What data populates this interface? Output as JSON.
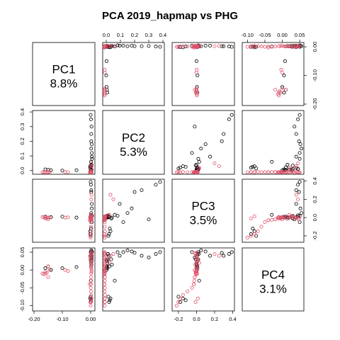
{
  "chart_data": {
    "type": "scatter",
    "title": "PCA 2019_hapmap vs PHG",
    "layout": "pairs",
    "grid": false,
    "legend": "none",
    "colors": {
      "group_a": "#000000",
      "group_b": "#df536b",
      "frame": "#000000"
    },
    "variables": [
      {
        "name": "PC1",
        "percent": "8.8%",
        "range": [
          -0.205,
          0.015
        ],
        "ticks": [
          -0.2,
          -0.1,
          0.0
        ],
        "tick_labels": [
          "-0.20",
          "-0.10",
          "0.00"
        ]
      },
      {
        "name": "PC2",
        "percent": "5.3%",
        "range": [
          -0.025,
          0.41
        ],
        "ticks": [
          0.0,
          0.1,
          0.2,
          0.3,
          0.4
        ],
        "tick_labels": [
          "0.0",
          "0.1",
          "0.2",
          "0.3",
          "0.4"
        ]
      },
      {
        "name": "PC3",
        "percent": "3.5%",
        "range": [
          -0.27,
          0.42
        ],
        "ticks": [
          -0.2,
          0.0,
          0.2,
          0.4
        ],
        "tick_labels": [
          "-0.2",
          "0.0",
          "0.2",
          "0.4"
        ]
      },
      {
        "name": "PC4",
        "percent": "3.1%",
        "range": [
          -0.115,
          0.062
        ],
        "ticks": [
          -0.1,
          -0.05,
          0.0,
          0.05
        ],
        "tick_labels": [
          "-0.10",
          "-0.05",
          "0.00",
          "0.05"
        ]
      }
    ],
    "series": [
      {
        "color_key": "group_a",
        "points": [
          [
            0.001,
            0.012,
            0.01,
            0.045
          ],
          [
            0.003,
            0.035,
            -0.01,
            0.03
          ],
          [
            0.005,
            0.08,
            0.02,
            0.05
          ],
          [
            0.004,
            0.095,
            0.15,
            0.04
          ],
          [
            0.002,
            0.15,
            0.05,
            0.055
          ],
          [
            0.0,
            0.38,
            0.39,
            0.05
          ],
          [
            0.001,
            0.35,
            0.36,
            0.045
          ],
          [
            0.003,
            0.3,
            -0.02,
            0.035
          ],
          [
            0.002,
            0.2,
            0.28,
            0.048
          ],
          [
            0.004,
            0.18,
            0.1,
            0.052
          ],
          [
            -0.002,
            0.03,
            -0.15,
            -0.08
          ],
          [
            -0.001,
            0.02,
            -0.18,
            -0.09
          ],
          [
            0.0,
            0.015,
            -0.2,
            -0.075
          ],
          [
            0.001,
            0.025,
            -0.12,
            -0.085
          ],
          [
            0.002,
            0.01,
            0.02,
            0.03
          ],
          [
            0.003,
            0.005,
            0.01,
            0.025
          ],
          [
            0.001,
            0.008,
            0.0,
            0.02
          ],
          [
            0.0,
            0.003,
            0.015,
            0.028
          ],
          [
            -0.001,
            0.018,
            0.005,
            0.04
          ],
          [
            0.002,
            0.012,
            0.025,
            0.045
          ],
          [
            0.001,
            0.022,
            0.01,
            0.01
          ],
          [
            0.003,
            0.04,
            0.0,
            0.015
          ],
          [
            -0.15,
            0.005,
            0.0,
            0.01
          ],
          [
            -0.16,
            0.008,
            0.01,
            0.005
          ],
          [
            -0.14,
            0.002,
            0.005,
            0.0
          ],
          [
            -0.1,
            0.0,
            0.01,
            0.005
          ],
          [
            -0.05,
            0.002,
            0.0,
            0.008
          ],
          [
            0.002,
            0.25,
            0.3,
            0.04
          ],
          [
            0.004,
            0.12,
            -0.05,
            0.05
          ],
          [
            0.001,
            0.06,
            0.03,
            -0.03
          ]
        ]
      },
      {
        "color_key": "group_b",
        "points": [
          [
            0.001,
            -0.01,
            0.0,
            0.01
          ],
          [
            0.002,
            -0.012,
            0.01,
            0.005
          ],
          [
            0.003,
            -0.008,
            -0.02,
            0.0
          ],
          [
            0.002,
            -0.011,
            -0.01,
            -0.01
          ],
          [
            0.001,
            -0.009,
            -0.02,
            -0.02
          ],
          [
            0.0,
            -0.01,
            -0.025,
            -0.03
          ],
          [
            0.001,
            -0.012,
            -0.03,
            -0.04
          ],
          [
            0.002,
            -0.011,
            0.005,
            0.02
          ],
          [
            0.001,
            -0.009,
            0.0,
            0.03
          ],
          [
            0.002,
            -0.01,
            -0.015,
            0.015
          ],
          [
            0.003,
            -0.012,
            0.0,
            -0.005
          ],
          [
            0.001,
            -0.008,
            0.01,
            0.025
          ],
          [
            0.0,
            -0.01,
            -0.05,
            -0.05
          ],
          [
            0.001,
            -0.011,
            -0.1,
            -0.06
          ],
          [
            0.002,
            -0.009,
            -0.15,
            -0.07
          ],
          [
            -0.001,
            -0.01,
            -0.2,
            -0.09
          ],
          [
            0.0,
            -0.011,
            -0.22,
            -0.1
          ],
          [
            0.001,
            -0.012,
            -0.18,
            -0.08
          ],
          [
            0.003,
            0.03,
            0.25,
            0.04
          ],
          [
            0.002,
            0.05,
            0.2,
            0.045
          ],
          [
            -0.15,
            -0.012,
            0.0,
            0.01
          ],
          [
            -0.16,
            -0.01,
            -0.01,
            -0.005
          ],
          [
            -0.17,
            -0.011,
            0.005,
            -0.01
          ],
          [
            -0.145,
            -0.009,
            0.0,
            0.0
          ],
          [
            -0.155,
            -0.013,
            -0.005,
            -0.008
          ],
          [
            -0.165,
            -0.012,
            0.003,
            -0.012
          ],
          [
            -0.09,
            -0.01,
            0.0,
            0.0
          ],
          [
            -0.08,
            -0.011,
            0.002,
            -0.003
          ],
          [
            -0.15,
            -0.01,
            -0.02,
            -0.02
          ],
          [
            -0.16,
            -0.012,
            0.005,
            -0.01
          ],
          [
            0.003,
            -0.012,
            0.01,
            0.05
          ],
          [
            0.002,
            -0.01,
            -0.02,
            0.048
          ],
          [
            0.001,
            -0.011,
            -0.01,
            0.045
          ],
          [
            0.0,
            -0.009,
            0.0,
            0.04
          ],
          [
            -0.002,
            -0.012,
            -0.005,
            0.035
          ],
          [
            0.003,
            -0.01,
            0.015,
            -0.08
          ],
          [
            0.002,
            -0.011,
            -0.01,
            -0.09
          ],
          [
            0.001,
            0.015,
            0.02,
            0.03
          ],
          [
            0.002,
            0.02,
            0.03,
            0.02
          ],
          [
            -0.003,
            -0.012,
            -0.03,
            -0.04
          ]
        ]
      }
    ]
  }
}
